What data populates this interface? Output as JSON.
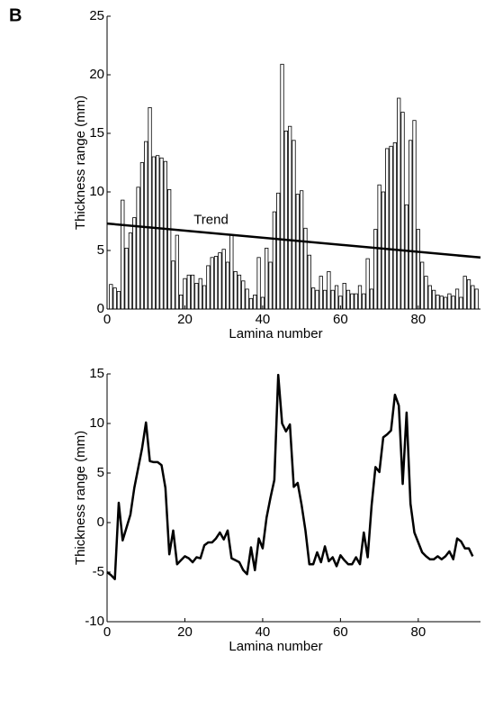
{
  "panel_label": "B",
  "chart_data": [
    {
      "type": "bar",
      "xlabel": "Lamina number",
      "ylabel": "Thickness range (mm)",
      "color": "#ffffff",
      "edgecolor": "#000000",
      "x": [
        1,
        2,
        3,
        4,
        5,
        6,
        7,
        8,
        9,
        10,
        11,
        12,
        13,
        14,
        15,
        16,
        17,
        18,
        19,
        20,
        21,
        22,
        23,
        24,
        25,
        26,
        27,
        28,
        29,
        30,
        31,
        32,
        33,
        34,
        35,
        36,
        37,
        38,
        39,
        40,
        41,
        42,
        43,
        44,
        45,
        46,
        47,
        48,
        49,
        50,
        51,
        52,
        53,
        54,
        55,
        56,
        57,
        58,
        59,
        60,
        61,
        62,
        63,
        64,
        65,
        66,
        67,
        68,
        69,
        70,
        71,
        72,
        73,
        74,
        75,
        76,
        77,
        78,
        79,
        80,
        81,
        82,
        83,
        84,
        85,
        86,
        87,
        88,
        89,
        90,
        91,
        92,
        93,
        94,
        95
      ],
      "values": [
        2.1,
        1.8,
        1.5,
        9.3,
        5.2,
        6.5,
        7.8,
        10.4,
        12.5,
        14.3,
        17.2,
        13.0,
        13.1,
        12.9,
        12.6,
        10.2,
        4.1,
        6.3,
        1.2,
        2.6,
        2.9,
        2.9,
        2.2,
        2.6,
        2.0,
        3.7,
        4.4,
        4.5,
        4.8,
        5.1,
        4.0,
        6.3,
        3.2,
        2.9,
        2.4,
        1.7,
        0.9,
        1.2,
        4.4,
        1.0,
        5.2,
        4.0,
        8.3,
        9.9,
        20.9,
        15.2,
        15.6,
        14.4,
        9.8,
        10.1,
        6.9,
        4.6,
        1.8,
        1.6,
        2.8,
        1.6,
        3.2,
        1.6,
        2.0,
        1.1,
        2.2,
        1.6,
        1.3,
        1.3,
        2.0,
        1.3,
        4.3,
        1.7,
        6.8,
        10.6,
        10.0,
        13.7,
        13.9,
        14.2,
        18.0,
        16.8,
        8.9,
        14.4,
        16.1,
        6.8,
        4.0,
        2.8,
        2.0,
        1.6,
        1.2,
        1.1,
        1.0,
        1.3,
        1.1,
        1.7,
        1.0,
        2.8,
        2.5,
        2.0,
        1.7
      ],
      "trend": {
        "label": "Trend",
        "x": [
          0,
          96
        ],
        "values": [
          7.3,
          4.4
        ],
        "color": "#000000"
      },
      "xlim": [
        0,
        96
      ],
      "xticks": [
        0,
        20,
        40,
        60,
        80
      ],
      "ylim": [
        0,
        25
      ],
      "yticks": [
        0,
        5,
        10,
        15,
        20,
        25
      ]
    },
    {
      "type": "line",
      "xlabel": "Lamina number",
      "ylabel": "Thickness range (mm)",
      "color": "#000000",
      "x": [
        0,
        1,
        2,
        3,
        4,
        5,
        6,
        7,
        8,
        9,
        10,
        11,
        12,
        13,
        14,
        15,
        16,
        17,
        18,
        19,
        20,
        21,
        22,
        23,
        24,
        25,
        26,
        27,
        28,
        29,
        30,
        31,
        32,
        33,
        34,
        35,
        36,
        37,
        38,
        39,
        40,
        41,
        42,
        43,
        44,
        45,
        46,
        47,
        48,
        49,
        50,
        51,
        52,
        53,
        54,
        55,
        56,
        57,
        58,
        59,
        60,
        61,
        62,
        63,
        64,
        65,
        66,
        67,
        68,
        69,
        70,
        71,
        72,
        73,
        74,
        75,
        76,
        77,
        78,
        79,
        80,
        81,
        82,
        83,
        84,
        85,
        86,
        87,
        88,
        89,
        90,
        91,
        92,
        93,
        94
      ],
      "values": [
        -5.0,
        -5.3,
        -5.7,
        2.0,
        -1.8,
        -0.5,
        0.8,
        3.5,
        5.5,
        7.5,
        10.1,
        6.2,
        6.1,
        6.1,
        5.8,
        3.5,
        -3.2,
        -0.8,
        -4.2,
        -3.8,
        -3.4,
        -3.6,
        -4.0,
        -3.5,
        -3.6,
        -2.3,
        -2.0,
        -2.0,
        -1.6,
        -1.0,
        -1.7,
        -0.8,
        -3.6,
        -3.8,
        -4.0,
        -4.8,
        -5.2,
        -2.5,
        -4.8,
        -1.6,
        -2.6,
        0.5,
        2.5,
        4.3,
        14.9,
        10.0,
        9.2,
        9.9,
        3.6,
        4.0,
        1.8,
        -0.8,
        -4.2,
        -4.2,
        -3.0,
        -4.0,
        -2.4,
        -3.9,
        -3.5,
        -4.4,
        -3.3,
        -3.8,
        -4.2,
        -4.2,
        -3.5,
        -4.2,
        -1.0,
        -3.5,
        1.7,
        5.6,
        5.1,
        8.6,
        8.9,
        9.3,
        12.9,
        11.8,
        3.9,
        11.1,
        1.9,
        -1.0,
        -2.0,
        -3.0,
        -3.4,
        -3.7,
        -3.7,
        -3.4,
        -3.7,
        -3.4,
        -2.9,
        -3.7,
        -1.6,
        -1.9,
        -2.6,
        -2.6,
        -3.4
      ],
      "xlim": [
        0,
        96
      ],
      "xticks": [
        0,
        20,
        40,
        60,
        80
      ],
      "ylim": [
        -10,
        15
      ],
      "yticks": [
        -10,
        -5,
        0,
        5,
        10,
        15
      ]
    }
  ]
}
